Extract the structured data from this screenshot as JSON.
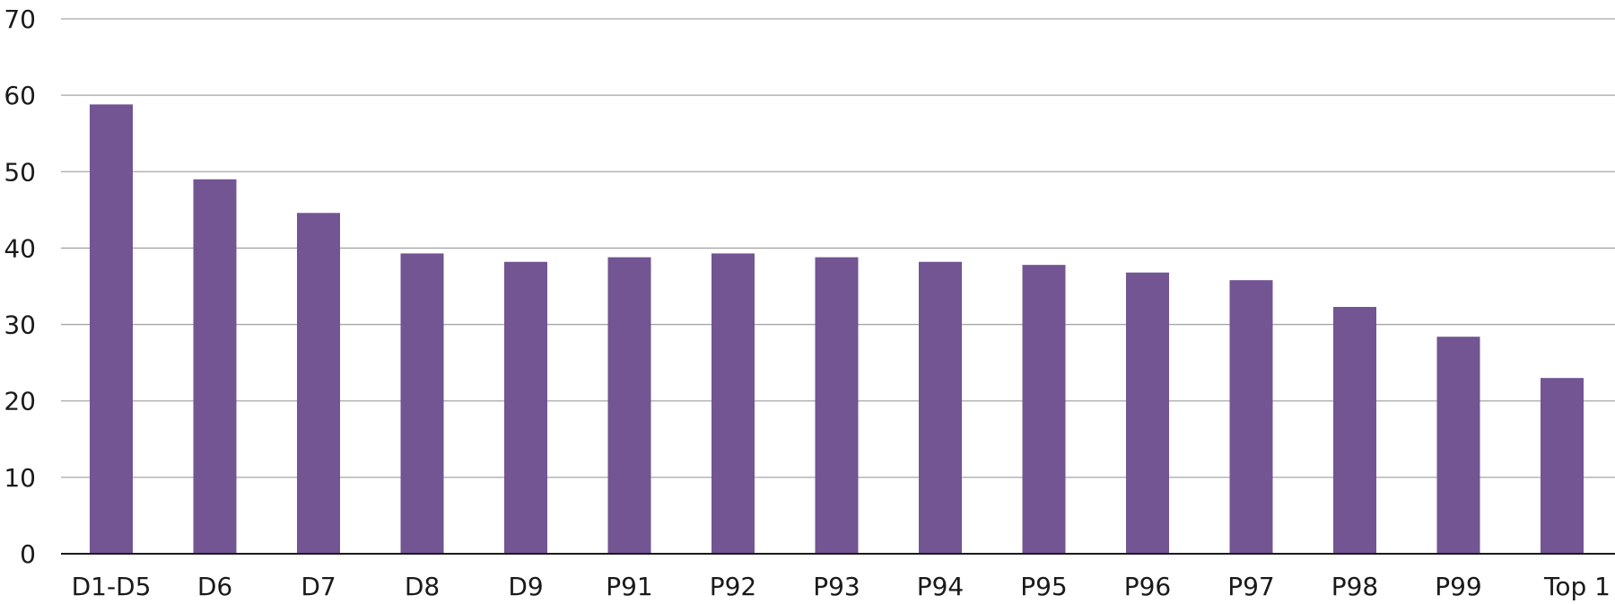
{
  "chart_data": {
    "type": "bar",
    "title": "",
    "xlabel": "",
    "ylabel": "",
    "categories": [
      "D1-D5",
      "D6",
      "D7",
      "D8",
      "D9",
      "P91",
      "P92",
      "P93",
      "P94",
      "P95",
      "P96",
      "P97",
      "P98",
      "P99",
      "Top 1"
    ],
    "values": [
      58.8,
      49.0,
      44.6,
      39.3,
      38.2,
      38.8,
      39.3,
      38.8,
      38.2,
      37.8,
      36.8,
      35.8,
      32.3,
      28.4,
      23.0
    ],
    "ylim": [
      0,
      70
    ],
    "yticks": [
      0,
      10,
      20,
      30,
      40,
      50,
      60,
      70
    ],
    "bar_color": "#725592",
    "grid": true,
    "legend": "none"
  }
}
